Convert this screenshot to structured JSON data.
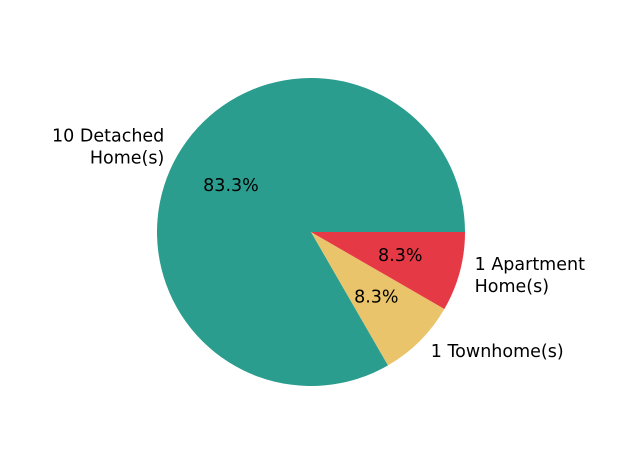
{
  "chart_data": {
    "type": "pie",
    "slices": [
      {
        "label_lines": [
          "10 Detached",
          "Home(s)"
        ],
        "value": 10,
        "percent_label": "83.3%",
        "color": "#2a9d8f"
      },
      {
        "label_lines": [
          "1 Townhome(s)"
        ],
        "value": 1,
        "percent_label": "8.3%",
        "color": "#e9c46a"
      },
      {
        "label_lines": [
          "1 Apartment",
          "Home(s)"
        ],
        "value": 1,
        "percent_label": "8.3%",
        "color": "#e63946"
      }
    ],
    "start_angle_deg": 0,
    "direction": "counterclockwise_from_east_drawn_clockwise_in_screen"
  }
}
